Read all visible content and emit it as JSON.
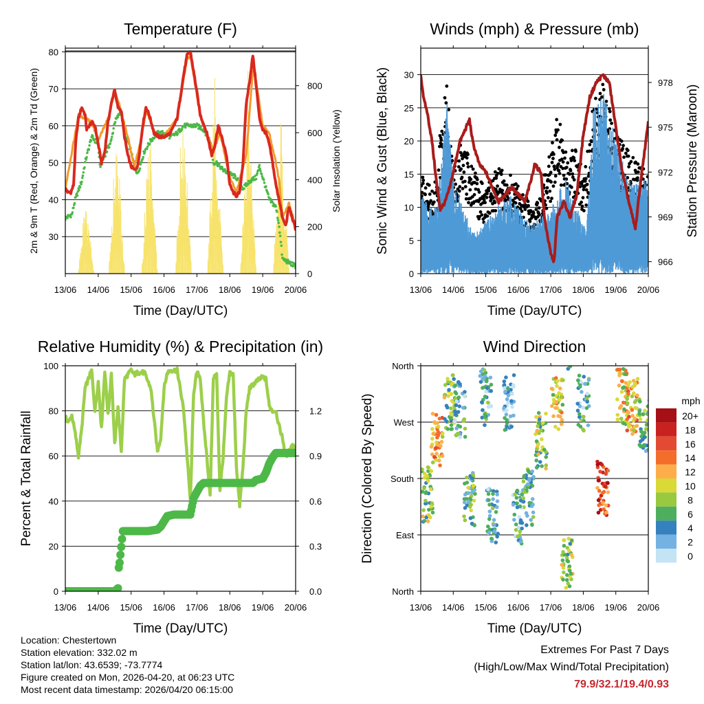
{
  "chart_data": [
    {
      "type": "line",
      "title": "Temperature (F)",
      "xlabel": "Time (Day/UTC)",
      "ylabel": "2m & 9m T (Red, Orange) & 2m Td (Green)",
      "ylabel_right": "Solar Insolation (Yellow)",
      "x_ticks": [
        "13/06",
        "14/06",
        "15/06",
        "16/06",
        "17/06",
        "18/06",
        "19/06",
        "20/06"
      ],
      "ylim": [
        20,
        81
      ],
      "yticks": [
        30,
        40,
        50,
        60,
        70,
        80
      ],
      "ylim_right": [
        0,
        960
      ],
      "yticks_right": [
        0,
        200,
        400,
        600,
        800
      ],
      "colors": {
        "t2m": "#d9291f",
        "t9m": "#f39a2b",
        "td": "#4db848",
        "solar": "#f7e36b"
      },
      "series": [
        {
          "name": "2m T",
          "x": [
            0,
            0.08,
            0.17,
            0.25,
            0.32,
            0.4,
            0.5,
            0.6,
            0.65,
            0.72,
            0.8,
            0.9,
            1.0,
            1.1,
            1.2,
            1.3,
            1.4,
            1.5,
            1.55,
            1.6,
            1.7,
            1.8,
            1.9,
            2.0,
            2.1,
            2.2,
            2.3,
            2.35,
            2.45,
            2.55,
            2.7,
            2.85,
            3.0,
            3.2,
            3.4,
            3.5,
            3.6,
            3.7,
            3.8,
            3.95,
            4.1,
            4.3,
            4.45,
            4.55,
            4.65,
            4.75,
            4.9,
            5.0,
            5.1,
            5.2,
            5.3,
            5.4,
            5.5,
            5.6,
            5.7,
            5.8,
            5.9,
            6.0,
            6.1,
            6.2,
            6.3,
            6.4,
            6.5,
            6.6,
            6.7,
            6.8,
            6.9,
            7.0
          ],
          "values": [
            43,
            42,
            42,
            44,
            56,
            62,
            65,
            63,
            59,
            60,
            61,
            60,
            55,
            50,
            53,
            61,
            66,
            70,
            67,
            65,
            64,
            57,
            52,
            49,
            48,
            49,
            56,
            60,
            65,
            63,
            58,
            57,
            57,
            58,
            62,
            68,
            74,
            79,
            80,
            72,
            63,
            58,
            52,
            55,
            60,
            57,
            52,
            44,
            42,
            41,
            42,
            50,
            66,
            72,
            79,
            71,
            62,
            59,
            58,
            55,
            50,
            44,
            40,
            35,
            33,
            38,
            35,
            32
          ]
        },
        {
          "name": "9m T",
          "x": [
            0,
            0.4,
            0.8,
            1.0,
            1.3,
            1.5,
            1.6,
            1.9,
            2.1,
            2.3,
            2.45,
            2.8,
            3.0,
            3.4,
            3.7,
            3.8,
            4.1,
            4.3,
            4.5,
            4.7,
            5.0,
            5.2,
            5.5,
            5.7,
            5.8,
            6.0,
            6.2,
            6.4,
            6.5,
            6.6,
            6.8,
            7.0
          ],
          "values": [
            43,
            63,
            61,
            56,
            62,
            69,
            67,
            57,
            49,
            56,
            64,
            57,
            57,
            62,
            78,
            79,
            63,
            58,
            53,
            58,
            46,
            42,
            52,
            75,
            72,
            60,
            58,
            50,
            45,
            35,
            39,
            33
          ]
        },
        {
          "name": "2m Td",
          "x": [
            0,
            0.2,
            0.3,
            0.5,
            0.6,
            0.8,
            1.0,
            1.05,
            1.2,
            1.4,
            1.5,
            1.7,
            1.8,
            2.0,
            2.1,
            2.2,
            2.4,
            2.6,
            2.8,
            3.0,
            3.2,
            3.4,
            3.6,
            3.8,
            4.0,
            4.2,
            4.4,
            4.5,
            4.6,
            4.8,
            5.0,
            5.2,
            5.4,
            5.6,
            5.8,
            5.9,
            6.0,
            6.2,
            6.4,
            6.5,
            6.6,
            6.8,
            7.0
          ],
          "values": [
            35,
            36,
            40,
            45,
            50,
            57,
            55,
            49,
            52,
            56,
            61,
            64,
            58,
            53,
            49,
            47,
            53,
            56,
            58,
            58,
            57,
            58,
            60,
            60,
            60,
            59,
            56,
            50,
            50,
            48,
            47,
            46,
            43,
            45,
            46,
            49,
            46,
            40,
            38,
            33,
            24,
            23,
            22
          ]
        },
        {
          "name": "Solar Insolation",
          "axis": "right",
          "peaks": [
            {
              "x": 0.62,
              "value": 380
            },
            {
              "x": 1.55,
              "value": 680
            },
            {
              "x": 2.55,
              "value": 680
            },
            {
              "x": 3.58,
              "value": 870
            },
            {
              "x": 4.55,
              "value": 920
            },
            {
              "x": 5.55,
              "value": 920
            },
            {
              "x": 6.55,
              "value": 690
            }
          ]
        }
      ]
    },
    {
      "type": "scatter",
      "title": "Winds (mph) & Pressure (mb)",
      "xlabel": "Time (Day/UTC)",
      "ylabel": "Sonic Wind & Gust (Blue, Black)",
      "ylabel_right": "Station Pressure (Maroon)",
      "x_ticks": [
        "13/06",
        "14/06",
        "15/06",
        "16/06",
        "17/06",
        "18/06",
        "19/06",
        "20/06"
      ],
      "ylim": [
        0,
        34
      ],
      "yticks": [
        0,
        5,
        10,
        15,
        20,
        25,
        30
      ],
      "ylim_right": [
        965.2,
        980.3
      ],
      "yticks_right": [
        966,
        969,
        972,
        975,
        978
      ],
      "colors": {
        "wind": "#4f9ad6",
        "gust": "#000000",
        "pressure": "#a81c1c"
      },
      "series": [
        {
          "name": "Sonic Wind",
          "x": [
            0,
            0.5,
            0.8,
            1.0,
            1.3,
            1.6,
            2.0,
            2.3,
            2.8,
            3.2,
            3.6,
            4.0,
            4.2,
            4.5,
            4.8,
            5.1,
            5.3,
            5.6,
            5.9,
            6.2,
            6.5,
            6.8,
            7.0
          ],
          "values": [
            6,
            5,
            14,
            8,
            5,
            3,
            4,
            5,
            6,
            4,
            4,
            5,
            6,
            8,
            5,
            3,
            14,
            15,
            12,
            9,
            7,
            8,
            7
          ]
        },
        {
          "name": "Gust",
          "x": [
            0,
            0.4,
            0.6,
            0.8,
            1.0,
            1.3,
            1.5,
            2.0,
            2.3,
            2.8,
            3.3,
            3.5,
            3.7,
            4.0,
            4.2,
            4.5,
            4.8,
            5.0,
            5.3,
            5.6,
            5.8,
            6.0,
            6.3,
            6.6,
            6.9,
            7.0
          ],
          "values": [
            13,
            11,
            19,
            25,
            14,
            18,
            15,
            11,
            14,
            13,
            10,
            8,
            12,
            16,
            22,
            15,
            18,
            12,
            22,
            27,
            24,
            19,
            17,
            15,
            14,
            13
          ]
        },
        {
          "name": "Station Pressure",
          "axis": "right",
          "x": [
            0,
            0.1,
            0.2,
            0.35,
            0.5,
            0.6,
            0.75,
            0.9,
            1.0,
            1.2,
            1.4,
            1.5,
            1.6,
            1.8,
            2.0,
            2.2,
            2.4,
            2.6,
            2.8,
            3.0,
            3.2,
            3.4,
            3.5,
            3.7,
            3.8,
            4.0,
            4.1,
            4.2,
            4.4,
            4.6,
            4.8,
            5.0,
            5.2,
            5.4,
            5.6,
            5.8,
            6.0,
            6.2,
            6.4,
            6.6,
            6.8,
            7.0
          ],
          "values": [
            978.5,
            976.8,
            976,
            974,
            971,
            969.5,
            970,
            971,
            972,
            974,
            975,
            975.5,
            974,
            972.5,
            972,
            971,
            970,
            970.5,
            971,
            970.5,
            970,
            971.5,
            972.5,
            972,
            969,
            966.5,
            966,
            969,
            970,
            969,
            970.5,
            974.5,
            977,
            978,
            978.5,
            978,
            975,
            972,
            970,
            968.2,
            972,
            975.3
          ]
        }
      ]
    },
    {
      "type": "line",
      "title": "Relative Humidity (%) & Precipitation (in)",
      "xlabel": "Time (Day/UTC)",
      "ylabel": "Percent & Total Rainfall",
      "x_ticks": [
        "13/06",
        "14/06",
        "15/06",
        "16/06",
        "17/06",
        "18/06",
        "19/06",
        "20/06"
      ],
      "ylim": [
        0,
        100
      ],
      "yticks": [
        0,
        20,
        40,
        60,
        80,
        100
      ],
      "ylim_right": [
        0,
        1.5
      ],
      "yticks_right": [
        "0.0",
        "0.3",
        "0.6",
        "0.9",
        "1.2"
      ],
      "colors": {
        "rh": "#9ccf4a",
        "precip": "#4db848"
      },
      "series": [
        {
          "name": "Relative Humidity",
          "x": [
            0,
            0.1,
            0.2,
            0.3,
            0.4,
            0.5,
            0.6,
            0.8,
            0.9,
            1.0,
            1.1,
            1.2,
            1.3,
            1.4,
            1.5,
            1.6,
            1.7,
            1.8,
            1.9,
            2.0,
            2.1,
            2.2,
            2.4,
            2.6,
            2.8,
            2.9,
            3.0,
            3.1,
            3.2,
            3.4,
            3.6,
            3.7,
            3.8,
            3.9,
            4.0,
            4.1,
            4.2,
            4.3,
            4.4,
            4.5,
            4.6,
            4.7,
            4.8,
            4.9,
            5.0,
            5.1,
            5.2,
            5.3,
            5.4,
            5.5,
            5.6,
            5.8,
            6.0,
            6.1,
            6.2,
            6.3,
            6.4,
            6.5,
            6.6,
            6.7,
            6.8,
            6.9,
            7.0
          ],
          "values": [
            77,
            75,
            78,
            70,
            60,
            72,
            90,
            98,
            80,
            93,
            72,
            98,
            78,
            97,
            65,
            82,
            62,
            94,
            96,
            98,
            96,
            97,
            97,
            90,
            62,
            68,
            90,
            97,
            98,
            98,
            80,
            60,
            40,
            88,
            97,
            95,
            75,
            60,
            42,
            95,
            96,
            45,
            60,
            86,
            97,
            96,
            55,
            38,
            55,
            80,
            90,
            93,
            95,
            94,
            82,
            80,
            80,
            73,
            68,
            60,
            62,
            65,
            63
          ]
        },
        {
          "name": "Total Precipitation",
          "axis": "right",
          "x": [
            0,
            0.5,
            1.0,
            1.5,
            1.6,
            1.62,
            1.65,
            1.75,
            2.0,
            2.5,
            2.8,
            2.9,
            3.1,
            3.3,
            3.8,
            3.9,
            4.0,
            4.1,
            4.2,
            4.5,
            5.0,
            5.5,
            5.7,
            5.8,
            6.0,
            6.1,
            6.2,
            6.3,
            6.4,
            6.5,
            6.6,
            6.7,
            7.0
          ],
          "values": [
            0,
            0,
            0,
            0,
            0.02,
            0.15,
            0.19,
            0.4,
            0.4,
            0.4,
            0.41,
            0.43,
            0.5,
            0.51,
            0.51,
            0.62,
            0.66,
            0.7,
            0.72,
            0.72,
            0.72,
            0.72,
            0.72,
            0.74,
            0.75,
            0.79,
            0.85,
            0.89,
            0.92,
            0.92,
            0.92,
            0.92,
            0.92
          ]
        }
      ]
    },
    {
      "type": "scatter",
      "title": "Wind Direction",
      "xlabel": "Time (Day/UTC)",
      "ylabel": "Direction (Colored By Speed)",
      "x_ticks": [
        "13/06",
        "14/06",
        "15/06",
        "16/06",
        "17/06",
        "18/06",
        "19/06",
        "20/06"
      ],
      "ylim": [
        0,
        360
      ],
      "yticks": [
        {
          "value": 0,
          "label": "North"
        },
        {
          "value": 90,
          "label": "East"
        },
        {
          "value": 180,
          "label": "South"
        },
        {
          "value": 270,
          "label": "West"
        },
        {
          "value": 360,
          "label": "North"
        }
      ],
      "colorbar": {
        "title": "mph",
        "labels": [
          "20+",
          "18",
          "16",
          "14",
          "12",
          "10",
          "8",
          "6",
          "4",
          "2",
          "0"
        ],
        "colors": [
          "#a50f15",
          "#c7221f",
          "#e34a33",
          "#f46d2a",
          "#fdae4b",
          "#d9d937",
          "#98c940",
          "#4fae5d",
          "#3581bd",
          "#73b2e2",
          "#c4e3f5"
        ]
      },
      "clusters": [
        {
          "x": 0.2,
          "dir": 155,
          "speed": 8
        },
        {
          "x": 0.5,
          "dir": 240,
          "speed": 12
        },
        {
          "x": 0.9,
          "dir": 300,
          "speed": 8
        },
        {
          "x": 1.2,
          "dir": 290,
          "speed": 4
        },
        {
          "x": 1.5,
          "dir": 150,
          "speed": 6
        },
        {
          "x": 2.0,
          "dir": 310,
          "speed": 4
        },
        {
          "x": 2.2,
          "dir": 120,
          "speed": 4
        },
        {
          "x": 2.7,
          "dir": 300,
          "speed": 3
        },
        {
          "x": 3.0,
          "dir": 120,
          "speed": 4
        },
        {
          "x": 3.3,
          "dir": 150,
          "speed": 5
        },
        {
          "x": 3.7,
          "dir": 240,
          "speed": 8
        },
        {
          "x": 4.2,
          "dir": 300,
          "speed": 10
        },
        {
          "x": 4.5,
          "dir": 40,
          "speed": 8
        },
        {
          "x": 5.0,
          "dir": 300,
          "speed": 4
        },
        {
          "x": 5.6,
          "dir": 165,
          "speed": 16
        },
        {
          "x": 6.2,
          "dir": 310,
          "speed": 10
        },
        {
          "x": 6.5,
          "dir": 295,
          "speed": 12
        },
        {
          "x": 6.9,
          "dir": 265,
          "speed": 6
        }
      ]
    }
  ],
  "station_info": {
    "location": "Location: Chestertown",
    "elevation": "Station elevation: 332.02 m",
    "latlon": "Station lat/lon: 43.6539; -73.7774",
    "created": "Figure created on Mon, 2026-04-20, at 06:23 UTC",
    "timestamp": "Most recent data timestamp: 2026/04/20 06:15:00"
  },
  "extremes": {
    "heading": "Extremes For Past 7 Days",
    "legend": "(High/Low/Max Wind/Total Precipitation)",
    "values": "79.9/32.1/19.4/0.93",
    "value_color": "#c4282e"
  }
}
